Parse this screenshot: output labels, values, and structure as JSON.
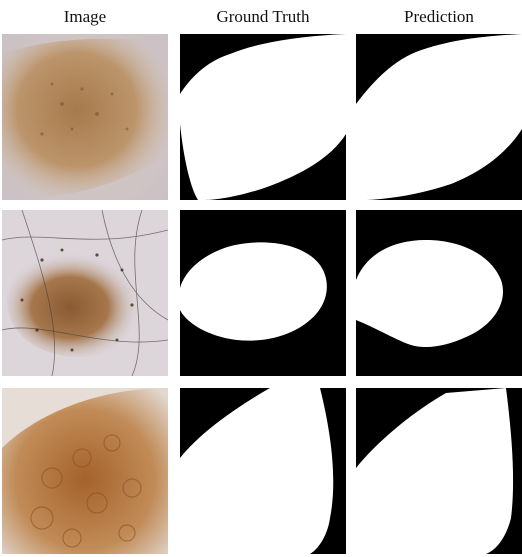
{
  "headers": {
    "image": "Image",
    "ground_truth": "Ground Truth",
    "prediction": "Prediction"
  },
  "rows": [
    {
      "image_icon": "dermoscopy-lesion-image",
      "gt_icon": "lesion-mask",
      "pred_icon": "lesion-mask"
    },
    {
      "image_icon": "dermoscopy-lesion-image-hair",
      "gt_icon": "lesion-mask",
      "pred_icon": "lesion-mask"
    },
    {
      "image_icon": "dermoscopy-lesion-image-pigmented",
      "gt_icon": "lesion-mask",
      "pred_icon": "lesion-mask"
    }
  ],
  "colors": {
    "mask_background": "#000000",
    "mask_foreground": "#ffffff",
    "skin_light": "#e6dcd6",
    "lesion_brown": "#a97a4e"
  }
}
